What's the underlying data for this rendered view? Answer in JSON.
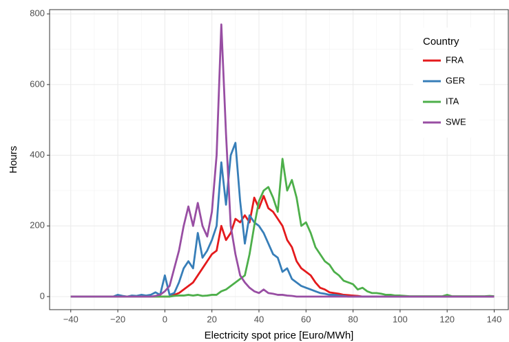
{
  "chart_data": {
    "type": "line",
    "x_label": "Electricity spot price [Euro/MWh]",
    "y_label": "Hours",
    "legend_title": "Country",
    "legend_position": "top-right",
    "grid": true,
    "xlim": [
      -49,
      146
    ],
    "ylim": [
      -37,
      812
    ],
    "xticks": [
      {
        "value": -40,
        "label": "−40"
      },
      {
        "value": -20,
        "label": "−20"
      },
      0,
      20,
      40,
      60,
      80,
      100,
      120,
      140
    ],
    "yticks": [
      0,
      200,
      400,
      600,
      800
    ],
    "x": [
      -40,
      -38,
      -36,
      -34,
      -32,
      -30,
      -28,
      -26,
      -24,
      -22,
      -20,
      -18,
      -16,
      -14,
      -12,
      -10,
      -8,
      -6,
      -4,
      -2,
      0,
      2,
      4,
      6,
      8,
      10,
      12,
      14,
      16,
      18,
      20,
      22,
      24,
      26,
      28,
      30,
      32,
      34,
      36,
      38,
      40,
      42,
      44,
      46,
      48,
      50,
      52,
      54,
      56,
      58,
      60,
      62,
      64,
      66,
      68,
      70,
      72,
      74,
      76,
      78,
      80,
      82,
      84,
      86,
      88,
      90,
      92,
      94,
      96,
      98,
      100,
      102,
      104,
      106,
      108,
      110,
      112,
      114,
      116,
      118,
      120,
      122,
      124,
      126,
      128,
      130,
      132,
      134,
      136,
      138,
      140
    ],
    "series": [
      {
        "name": "FRA",
        "color": "#e41a1c",
        "values": [
          0,
          0,
          0,
          0,
          0,
          0,
          0,
          0,
          0,
          0,
          0,
          0,
          0,
          0,
          0,
          0,
          0,
          0,
          0,
          0,
          0,
          0,
          5,
          10,
          20,
          30,
          40,
          60,
          80,
          100,
          120,
          130,
          200,
          160,
          180,
          220,
          210,
          230,
          210,
          280,
          250,
          285,
          250,
          240,
          220,
          200,
          160,
          140,
          100,
          80,
          70,
          60,
          40,
          25,
          20,
          12,
          10,
          8,
          5,
          4,
          3,
          2,
          0,
          0,
          0,
          0,
          0,
          0,
          0,
          0,
          0,
          0,
          0,
          0,
          0,
          0,
          0,
          0,
          0,
          0,
          0,
          0,
          0,
          0,
          0,
          0,
          0,
          0,
          0,
          0,
          0
        ]
      },
      {
        "name": "GER",
        "color": "#377eb8",
        "values": [
          0,
          0,
          0,
          0,
          0,
          0,
          0,
          0,
          0,
          0,
          5,
          2,
          0,
          3,
          2,
          5,
          3,
          5,
          12,
          5,
          60,
          5,
          10,
          40,
          80,
          100,
          80,
          180,
          110,
          130,
          160,
          200,
          380,
          260,
          400,
          435,
          270,
          150,
          230,
          210,
          200,
          180,
          150,
          120,
          110,
          70,
          80,
          50,
          40,
          30,
          25,
          20,
          15,
          10,
          8,
          5,
          5,
          3,
          2,
          0,
          0,
          0,
          0,
          0,
          0,
          0,
          0,
          0,
          0,
          0,
          0,
          0,
          0,
          0,
          0,
          0,
          0,
          0,
          0,
          0,
          0,
          0,
          0,
          0,
          0,
          0,
          0,
          0,
          0,
          0,
          0
        ]
      },
      {
        "name": "ITA",
        "color": "#4daf4a",
        "values": [
          0,
          0,
          0,
          0,
          0,
          0,
          0,
          0,
          0,
          0,
          0,
          0,
          0,
          0,
          0,
          0,
          0,
          0,
          0,
          0,
          0,
          0,
          2,
          3,
          3,
          5,
          3,
          5,
          2,
          3,
          5,
          5,
          15,
          20,
          30,
          40,
          50,
          60,
          120,
          200,
          270,
          300,
          310,
          280,
          240,
          390,
          300,
          330,
          280,
          200,
          210,
          180,
          140,
          120,
          100,
          90,
          70,
          60,
          45,
          40,
          35,
          20,
          25,
          15,
          10,
          10,
          8,
          5,
          5,
          3,
          3,
          2,
          1,
          1,
          1,
          1,
          1,
          1,
          1,
          1,
          5,
          1,
          1,
          1,
          1,
          1,
          1,
          1,
          1,
          2,
          1
        ]
      },
      {
        "name": "SWE",
        "color": "#984ea3",
        "values": [
          0,
          0,
          0,
          0,
          0,
          0,
          0,
          0,
          0,
          0,
          0,
          0,
          0,
          0,
          0,
          0,
          0,
          0,
          2,
          5,
          15,
          30,
          80,
          130,
          200,
          255,
          200,
          265,
          200,
          170,
          240,
          400,
          770,
          460,
          200,
          120,
          60,
          40,
          25,
          15,
          10,
          20,
          10,
          8,
          5,
          5,
          3,
          2,
          0,
          0,
          0,
          0,
          0,
          0,
          0,
          0,
          0,
          0,
          0,
          0,
          0,
          0,
          0,
          0,
          0,
          0,
          0,
          0,
          0,
          0,
          0,
          0,
          0,
          0,
          0,
          0,
          0,
          0,
          0,
          0,
          0,
          0,
          0,
          0,
          0,
          0,
          0,
          0,
          0,
          0,
          0
        ]
      }
    ]
  }
}
